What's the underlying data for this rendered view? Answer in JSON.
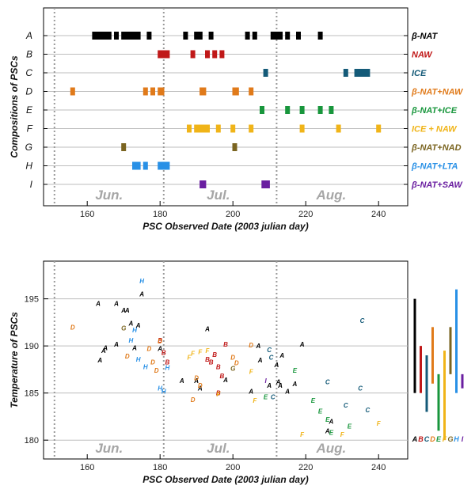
{
  "colors": {
    "A": "#000000",
    "B": "#c01818",
    "C": "#145a78",
    "D": "#e07a1a",
    "E": "#18963c",
    "F": "#f0b418",
    "G": "#7a6420",
    "H": "#2890e6",
    "I": "#6a1ea0"
  },
  "chart_data": [
    {
      "type": "timeline",
      "xlabel": "PSC Observed Date (2003 julian day)",
      "ylabel": "Compositions of PSCs",
      "xlim": [
        148,
        248
      ],
      "xticks": [
        160,
        180,
        200,
        220,
        240
      ],
      "month_boundaries": [
        151,
        181,
        212
      ],
      "month_labels": [
        {
          "text": "Jun.",
          "x": 166
        },
        {
          "text": "Jul.",
          "x": 196
        },
        {
          "text": "Aug.",
          "x": 227
        }
      ],
      "categories": [
        {
          "id": "A",
          "label": "β-NAT",
          "days": [
            162,
            163,
            163.5,
            164,
            164.5,
            165,
            166,
            168,
            170,
            171,
            172,
            173,
            174,
            177,
            187,
            190,
            191,
            194,
            204,
            206,
            211,
            212,
            213,
            215,
            218,
            224
          ]
        },
        {
          "id": "B",
          "label": "NAW",
          "days": [
            180,
            181,
            182,
            189,
            193,
            195,
            197
          ]
        },
        {
          "id": "C",
          "label": "ICE",
          "days": [
            209,
            231,
            234,
            235,
            236,
            237
          ]
        },
        {
          "id": "D",
          "label": "β-NAT+NAW",
          "days": [
            156,
            176,
            178,
            180,
            180.5,
            191.5,
            192,
            200.5,
            201,
            205
          ]
        },
        {
          "id": "E",
          "label": "β-NAT+ICE",
          "days": [
            208,
            215,
            219,
            224,
            227
          ]
        },
        {
          "id": "F",
          "label": "ICE + NAW",
          "days": [
            188,
            190,
            191,
            192,
            193,
            196,
            200,
            205,
            219,
            229,
            240
          ]
        },
        {
          "id": "G",
          "label": "β-NAT+NAD",
          "days": [
            170,
            200.5
          ]
        },
        {
          "id": "H",
          "label": "β-NAT+LTA",
          "days": [
            173,
            174,
            176,
            180,
            181,
            182
          ]
        },
        {
          "id": "I",
          "label": "β-NAT+SAW",
          "days": [
            191.5,
            192,
            208.5,
            209,
            209.5
          ]
        }
      ]
    },
    {
      "type": "scatter",
      "xlabel": "PSC Observed Date (2003 julian day)",
      "ylabel": "Temperature of PSCs",
      "xlim": [
        148,
        248
      ],
      "ylim": [
        178,
        199
      ],
      "xticks": [
        160,
        180,
        200,
        220,
        240
      ],
      "yticks": [
        180,
        185,
        190,
        195
      ],
      "month_boundaries": [
        151,
        181,
        212
      ],
      "month_labels": [
        {
          "text": "Jun.",
          "x": 166
        },
        {
          "text": "Jul.",
          "x": 196
        },
        {
          "text": "Aug.",
          "x": 227
        }
      ],
      "series": [
        {
          "name": "A",
          "points": [
            [
              163,
              194.5
            ],
            [
              164.5,
              189.5
            ],
            [
              165,
              189.8
            ],
            [
              163.5,
              188.5
            ],
            [
              168,
              194.5
            ],
            [
              170,
              193.8
            ],
            [
              171,
              193.8
            ],
            [
              168,
              190.2
            ],
            [
              172,
              192.4
            ],
            [
              174,
              192.2
            ],
            [
              175,
              195.5
            ],
            [
              173,
              189.8
            ],
            [
              180,
              189.7
            ],
            [
              186,
              186.3
            ],
            [
              190,
              186.3
            ],
            [
              191,
              185.5
            ],
            [
              193,
              191.8
            ],
            [
              198,
              186.4
            ],
            [
              205,
              185.2
            ],
            [
              207,
              190
            ],
            [
              207.5,
              188.5
            ],
            [
              210,
              185.8
            ],
            [
              212,
              188
            ],
            [
              212.5,
              186.2
            ],
            [
              213,
              185.8
            ],
            [
              213.5,
              189
            ],
            [
              215,
              185.2
            ],
            [
              217,
              186
            ],
            [
              219,
              190.2
            ],
            [
              226,
              181
            ],
            [
              227,
              182
            ]
          ]
        },
        {
          "name": "B",
          "points": [
            [
              180,
              190.6
            ],
            [
              181,
              189.3
            ],
            [
              182,
              188.3
            ],
            [
              193,
              188.6
            ],
            [
              194,
              188.3
            ],
            [
              195,
              189.1
            ],
            [
              196,
              187.8
            ],
            [
              197,
              186.8
            ],
            [
              198,
              190.2
            ],
            [
              196,
              185
            ]
          ]
        },
        {
          "name": "C",
          "points": [
            [
              210,
              189.6
            ],
            [
              210.5,
              188.8
            ],
            [
              211,
              184.6
            ],
            [
              226,
              186.2
            ],
            [
              231,
              183.7
            ],
            [
              235,
              185.5
            ],
            [
              235.5,
              192.7
            ],
            [
              237,
              183.2
            ]
          ]
        },
        {
          "name": "D",
          "points": [
            [
              156,
              192
            ],
            [
              171,
              188.9
            ],
            [
              177,
              189.7
            ],
            [
              178,
              188.3
            ],
            [
              179,
              187.4
            ],
            [
              180,
              190.5
            ],
            [
              189,
              184.3
            ],
            [
              190,
              186.6
            ],
            [
              191,
              185.8
            ],
            [
              200,
              188.8
            ],
            [
              201,
              188.2
            ],
            [
              205,
              190.1
            ]
          ]
        },
        {
          "name": "E",
          "points": [
            [
              209,
              184.6
            ],
            [
              217,
              187.4
            ],
            [
              222,
              184.2
            ],
            [
              224,
              183.1
            ],
            [
              226,
              182.2
            ],
            [
              227,
              180.8
            ],
            [
              232,
              181.5
            ]
          ]
        },
        {
          "name": "F",
          "points": [
            [
              188,
              188.8
            ],
            [
              189,
              189.2
            ],
            [
              191,
              189.4
            ],
            [
              193,
              189.5
            ],
            [
              196,
              184.9
            ],
            [
              205,
              187.3
            ],
            [
              206,
              184.2
            ],
            [
              219,
              180.6
            ],
            [
              230,
              180.6
            ],
            [
              240,
              181.8
            ]
          ]
        },
        {
          "name": "G",
          "points": [
            [
              170,
              191.9
            ],
            [
              200,
              187.6
            ]
          ]
        },
        {
          "name": "H",
          "points": [
            [
              175,
              196.9
            ],
            [
              173,
              191.7
            ],
            [
              172,
              190.6
            ],
            [
              174,
              188.6
            ],
            [
              176,
              187.8
            ],
            [
              180,
              185.5
            ],
            [
              181,
              185.2
            ],
            [
              182,
              187.7
            ]
          ]
        },
        {
          "name": "I",
          "points": [
            [
              209,
              186.3
            ]
          ]
        }
      ],
      "range_bars": [
        {
          "name": "A",
          "min": 185,
          "max": 195
        },
        {
          "name": "B",
          "min": 185,
          "max": 190
        },
        {
          "name": "C",
          "min": 183,
          "max": 189
        },
        {
          "name": "D",
          "min": 186,
          "max": 192
        },
        {
          "name": "E",
          "min": 181,
          "max": 187
        },
        {
          "name": "F",
          "min": 180,
          "max": 189.5
        },
        {
          "name": "G",
          "min": 187,
          "max": 192
        },
        {
          "name": "H",
          "min": 185,
          "max": 196
        },
        {
          "name": "I",
          "min": 185.5,
          "max": 187
        }
      ]
    }
  ]
}
